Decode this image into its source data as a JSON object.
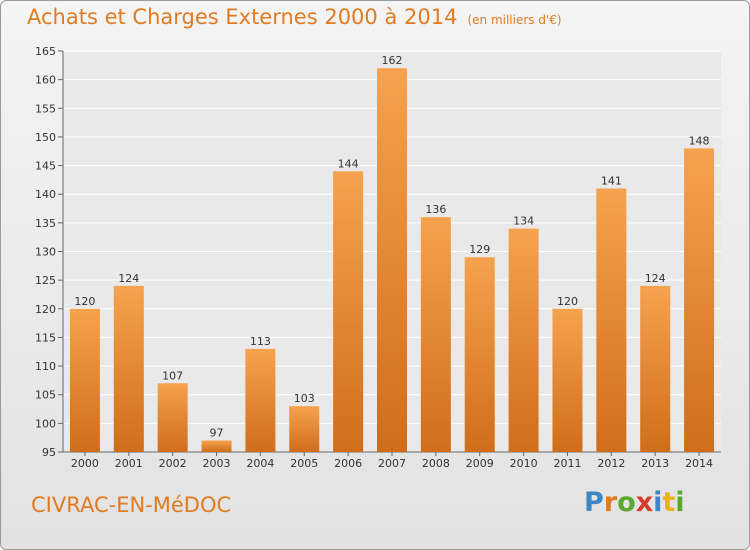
{
  "chart_data": {
    "type": "bar",
    "title": "Achats et Charges Externes 2000 à 2014",
    "subtitle": "(en milliers d'€)",
    "categories": [
      "2000",
      "2001",
      "2002",
      "2003",
      "2004",
      "2005",
      "2006",
      "2007",
      "2008",
      "2009",
      "2010",
      "2011",
      "2012",
      "2013",
      "2014"
    ],
    "values": [
      120,
      124,
      107,
      97,
      113,
      103,
      144,
      162,
      136,
      129,
      134,
      120,
      141,
      124,
      148
    ],
    "ylim": [
      95,
      165
    ],
    "yticks": [
      95,
      100,
      105,
      110,
      115,
      120,
      125,
      130,
      135,
      140,
      145,
      150,
      155,
      160,
      165
    ],
    "grid": true,
    "legend": "none",
    "colors": {
      "bar_light": "#f6a24e",
      "bar_dark": "#d06d1a",
      "title": "#e07b22"
    }
  },
  "footer": {
    "place": "CIVRAC-EN-MéDOC",
    "brand": "Proxiti",
    "brand_colors": [
      "#3d86c6",
      "#e07b22",
      "#5aa832",
      "#d93a2e",
      "#3d86c6",
      "#e9b21d",
      "#5aa832"
    ]
  }
}
